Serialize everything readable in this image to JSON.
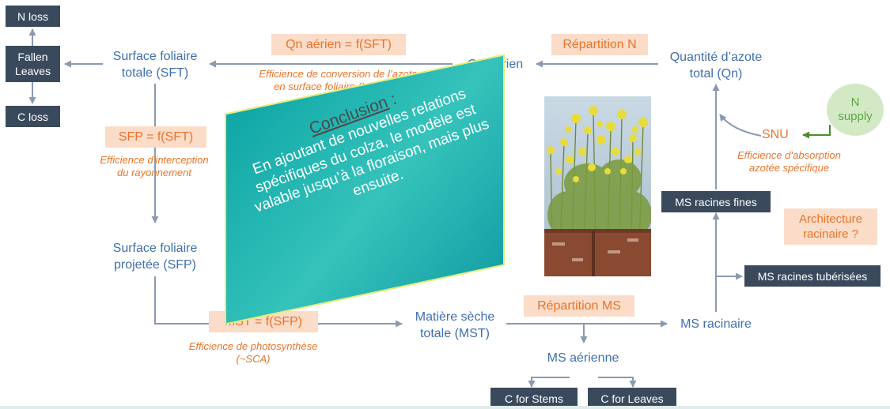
{
  "loss_boxes": {
    "n_loss": "N loss",
    "fallen_leaves": "Fallen Leaves",
    "c_loss": "C loss"
  },
  "nodes": {
    "sft": "Surface foliaire\ntotale (SFT)",
    "qn_aerien": "Qn aérien",
    "qn_total": "Quantité d’azote\ntotal (Qn)",
    "sfp": "Surface foliaire\nprojetée (SFP)",
    "mst": "Matière sèche\ntotale (MST)",
    "ms_racinaire": "MS racinaire",
    "ms_aerienne": "MS aérienne",
    "snu": "SNU"
  },
  "dark_boxes": {
    "ms_racines_fines": "MS racines fines",
    "ms_racines_tuberisees": "MS racines tubérisées",
    "c_stems": "C for Stems",
    "c_leaves": "C for Leaves"
  },
  "relations": {
    "qn_aerien_sft": "Qn aérien = f(SFT)",
    "repartition_n": "Répartition N",
    "sfp_sft": "SFP = f(SFT)",
    "mst_sfp": "MST = f(SFP)",
    "repartition_ms": "Répartition MS",
    "architecture": "Architecture\nracinaire ?"
  },
  "efficiencies": {
    "conversion": "Efficience de conversion de l’azote\nen surface foliaire (LA/QNS)",
    "interception": "Efficience d’interception\ndu rayonnement",
    "photosynthese": "Efficience de photosynthèse\n(~SCA)",
    "absorption": "Efficience d’absorption\nazotée spécifique"
  },
  "n_supply": "N\nsupply",
  "conclusion": {
    "title": "Conclusion",
    "colon": " :",
    "body": "En ajoutant de nouvelles relations spécifiques du colza, le modèle est valable jusqu’à la floraison, mais plus ensuite."
  },
  "colors": {
    "node_text": "#3f6fb0",
    "accent_orange": "#e8742a",
    "peach_fill": "#fbdcc8",
    "dark_box": "#3a4a5c",
    "arrow": "#8a9ab0",
    "teal": "#1fb0ad",
    "green": "#5aa93c"
  }
}
